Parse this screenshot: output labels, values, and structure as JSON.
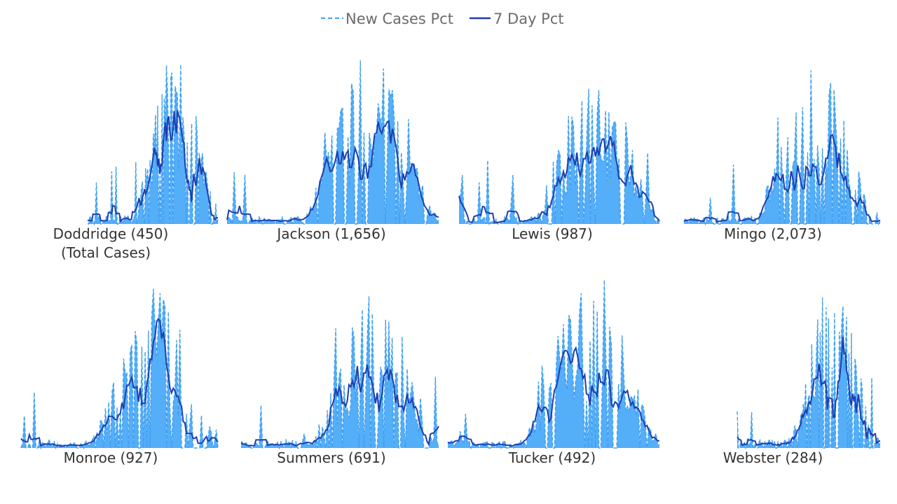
{
  "colors": {
    "daily": "#3f9ff0",
    "daily_fill": "#55aef8",
    "avg": "#1d3fb0"
  },
  "legend": {
    "daily_label": "New Cases Pct",
    "avg_label": "7 Day Pct"
  },
  "subtitle": "(Total Cases)",
  "chart_data": {
    "type": "area",
    "legend_position": "top-center",
    "grid": false,
    "axes_visible": false,
    "panels": [
      {
        "title": "Doddridge (450)",
        "start": 0.31,
        "peak": 0.9,
        "seed": 1
      },
      {
        "title": "Jackson (1,656)",
        "start": 0.0,
        "peak": 0.85,
        "seed": 2
      },
      {
        "title": "Lewis (987)",
        "start": 0.0,
        "peak": 0.8,
        "seed": 3
      },
      {
        "title": "Mingo (2,073)",
        "start": 0.0,
        "peak": 0.82,
        "seed": 4
      },
      {
        "title": "Monroe (927)",
        "start": 0.0,
        "peak": 0.85,
        "seed": 5
      },
      {
        "title": "Summers (691)",
        "start": 0.0,
        "peak": 0.85,
        "seed": 6
      },
      {
        "title": "Tucker (492)",
        "start": 0.0,
        "peak": 0.9,
        "seed": 7
      },
      {
        "title": "Webster (284)",
        "start": 0.27,
        "peak": 0.9,
        "seed": 8
      }
    ]
  }
}
